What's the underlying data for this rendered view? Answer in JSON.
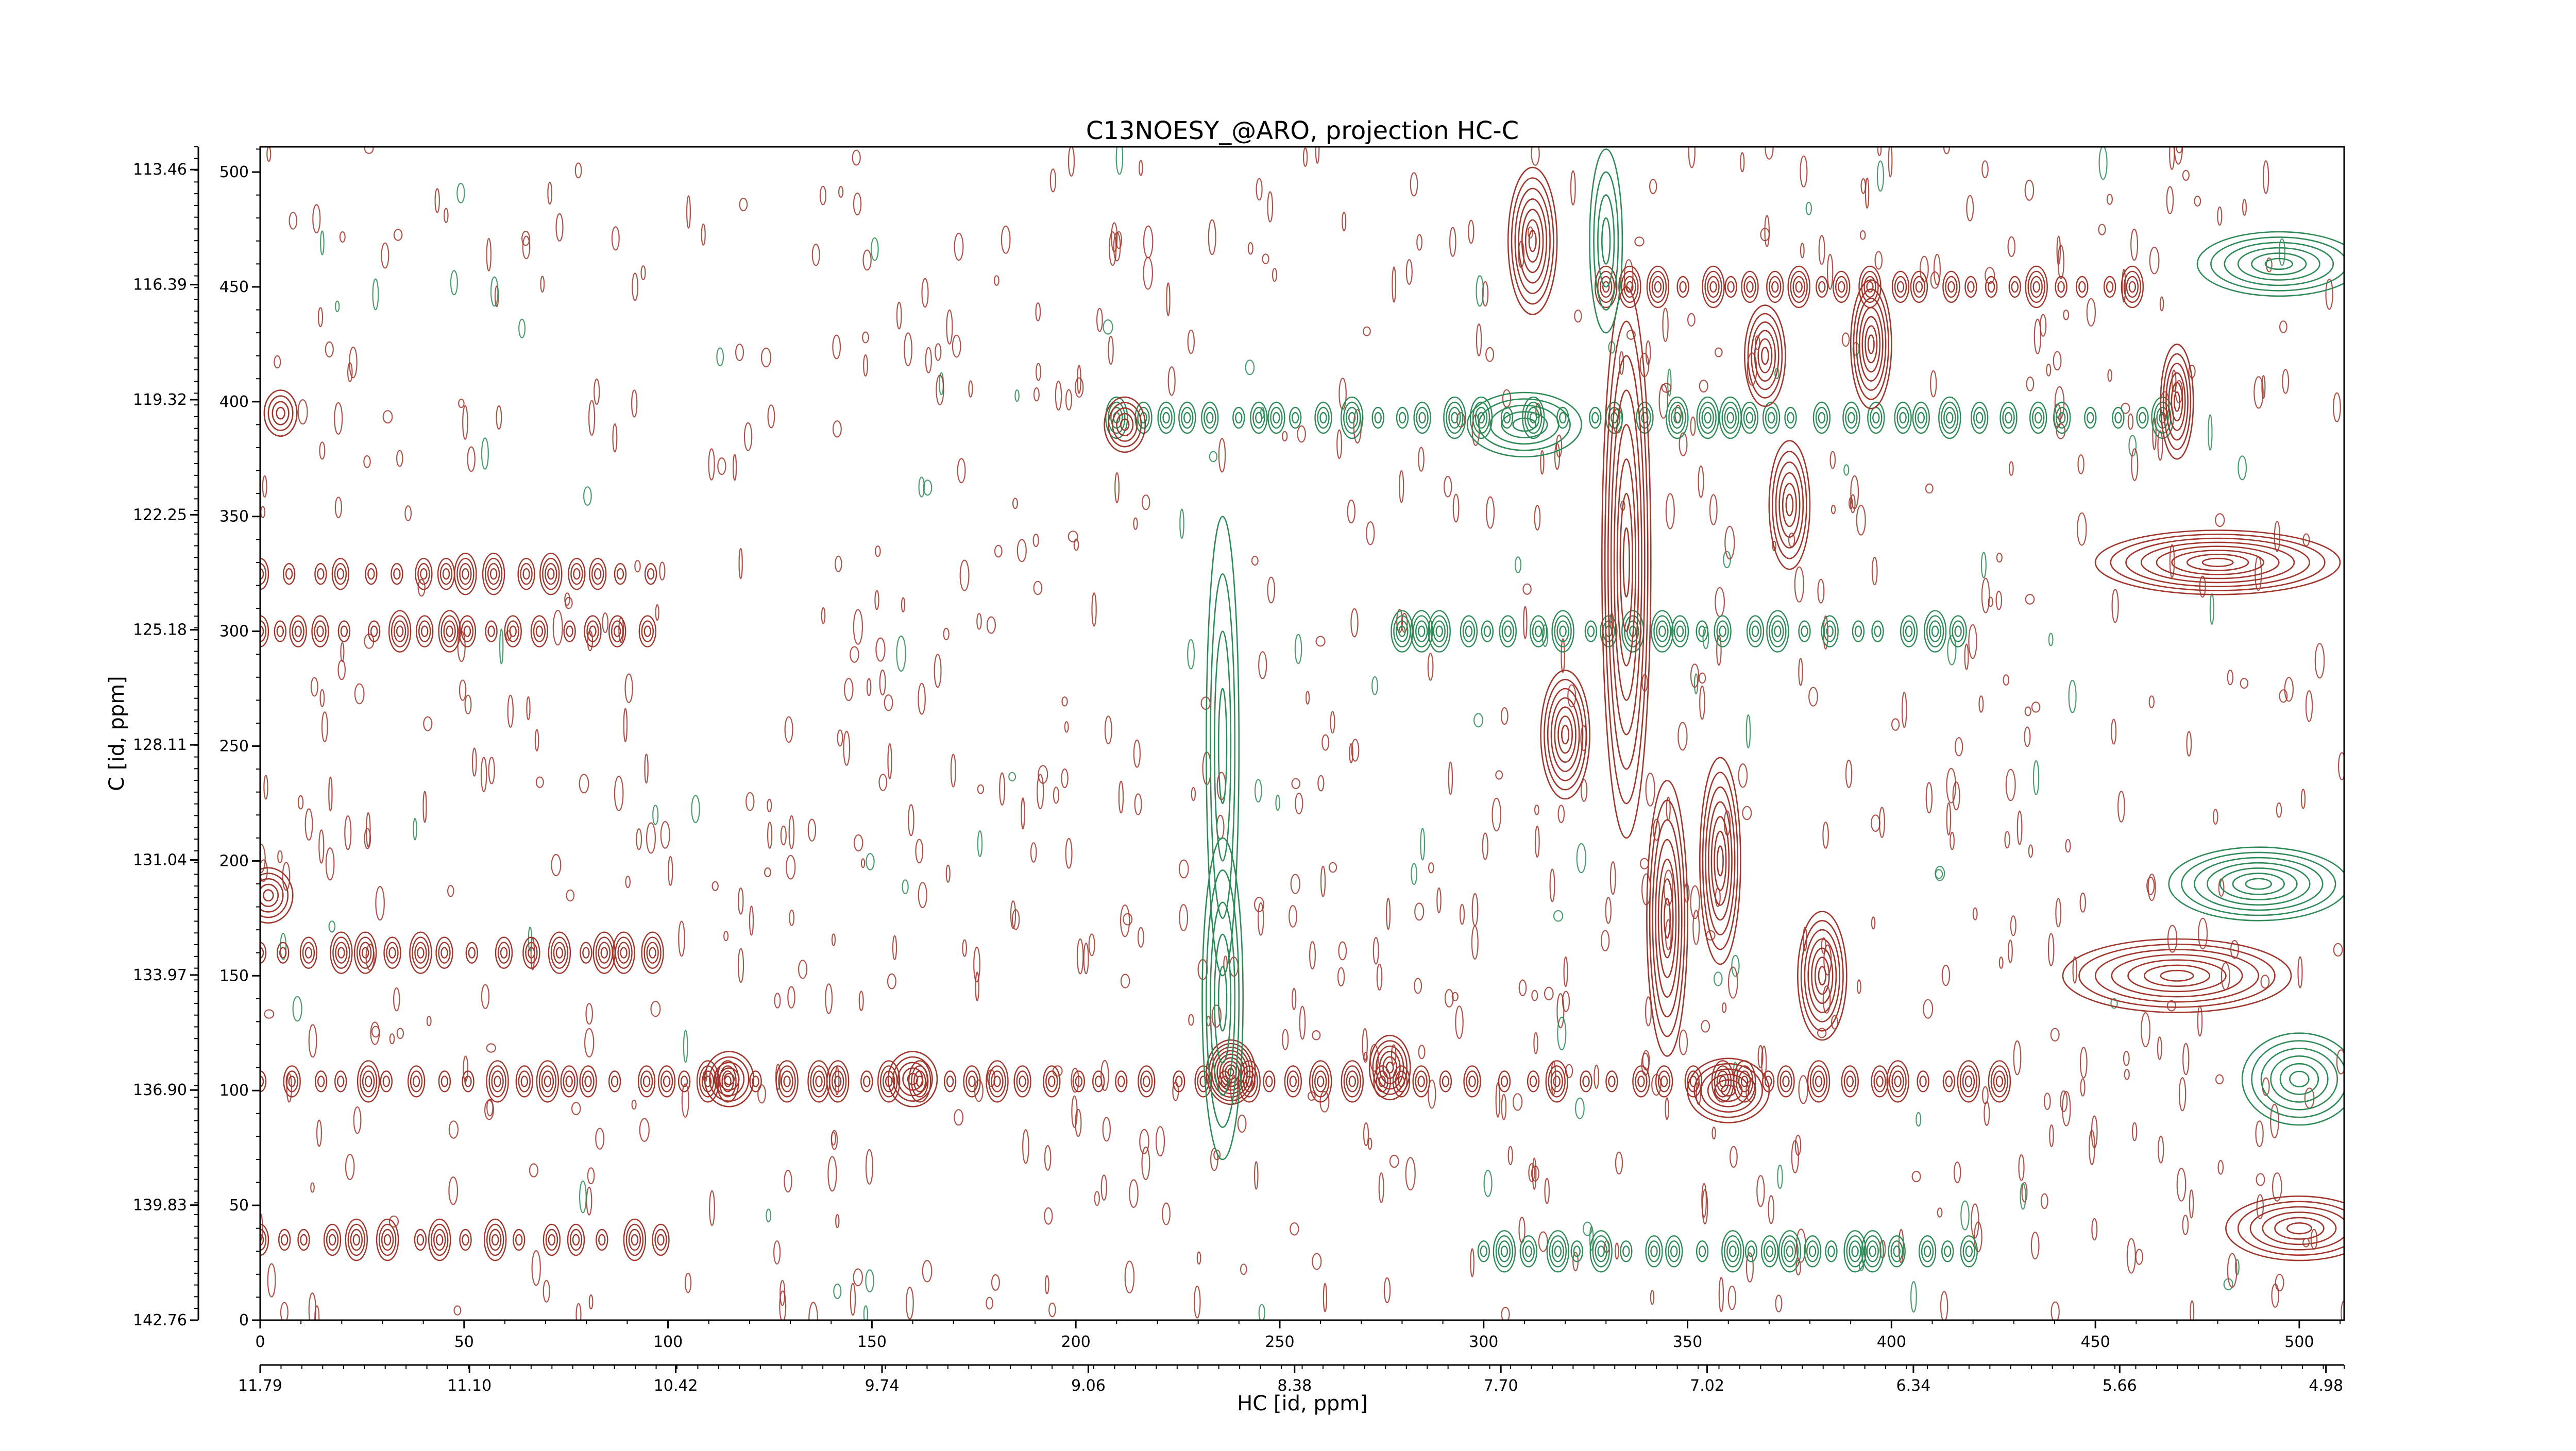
{
  "chart_data": {
    "type": "contour",
    "title": "C13NOESY_@ARO, projection HC-C",
    "xlabel": "HC [id, ppm]",
    "ylabel": "C [id, ppm]",
    "x_points": {
      "range": [
        0,
        511
      ],
      "ticks": [
        "0",
        "50",
        "100",
        "150",
        "200",
        "250",
        "300",
        "350",
        "400",
        "450",
        "500"
      ]
    },
    "x_ppm": {
      "range": [
        11.79,
        4.92
      ],
      "ticks": [
        "11.79",
        "11.10",
        "10.42",
        "9.74",
        "9.06",
        "8.38",
        "7.70",
        "7.02",
        "6.34",
        "5.66",
        "4.98"
      ]
    },
    "y_points": {
      "range": [
        0,
        511
      ],
      "ticks": [
        "0",
        "50",
        "100",
        "150",
        "200",
        "250",
        "300",
        "350",
        "400",
        "450",
        "500"
      ]
    },
    "y_ppm": {
      "range": [
        142.76,
        112.88
      ],
      "ticks": [
        "142.76",
        "139.83",
        "136.90",
        "133.97",
        "131.04",
        "128.11",
        "125.18",
        "122.25",
        "119.32",
        "116.39",
        "113.46"
      ]
    },
    "series": [
      {
        "color": "#a0362c",
        "sign": "positive"
      },
      {
        "color": "#2e8b57",
        "sign": "negative"
      }
    ],
    "peaks": [
      {
        "x": 238,
        "y": 108,
        "sign": "positive",
        "rx": 6,
        "ry": 14,
        "levels": 9
      },
      {
        "x": 236,
        "y": 140,
        "sign": "negative",
        "rx": 5,
        "ry": 70,
        "levels": 5
      },
      {
        "x": 236,
        "y": 250,
        "sign": "negative",
        "rx": 4,
        "ry": 100,
        "levels": 4
      },
      {
        "x": 335,
        "y": 330,
        "sign": "positive",
        "rx": 6,
        "ry": 120,
        "levels": 8
      },
      {
        "x": 330,
        "y": 470,
        "sign": "negative",
        "rx": 4,
        "ry": 40,
        "levels": 4
      },
      {
        "x": 312,
        "y": 470,
        "sign": "positive",
        "rx": 6,
        "ry": 32,
        "levels": 7
      },
      {
        "x": 345,
        "y": 175,
        "sign": "positive",
        "rx": 5,
        "ry": 60,
        "levels": 7
      },
      {
        "x": 358,
        "y": 200,
        "sign": "positive",
        "rx": 5,
        "ry": 45,
        "levels": 7
      },
      {
        "x": 320,
        "y": 255,
        "sign": "positive",
        "rx": 6,
        "ry": 28,
        "levels": 7
      },
      {
        "x": 383,
        "y": 150,
        "sign": "positive",
        "rx": 6,
        "ry": 28,
        "levels": 7
      },
      {
        "x": 395,
        "y": 425,
        "sign": "positive",
        "rx": 5,
        "ry": 28,
        "levels": 7
      },
      {
        "x": 369,
        "y": 420,
        "sign": "positive",
        "rx": 5,
        "ry": 22,
        "levels": 6
      },
      {
        "x": 375,
        "y": 355,
        "sign": "positive",
        "rx": 5,
        "ry": 28,
        "levels": 6
      },
      {
        "x": 310,
        "y": 390,
        "sign": "negative",
        "rx": 14,
        "ry": 14,
        "levels": 5
      },
      {
        "x": 277,
        "y": 110,
        "sign": "positive",
        "rx": 5,
        "ry": 14,
        "levels": 6
      },
      {
        "x": 212,
        "y": 390,
        "sign": "positive",
        "rx": 5,
        "ry": 12,
        "levels": 5
      },
      {
        "x": 360,
        "y": 100,
        "sign": "positive",
        "rx": 10,
        "ry": 14,
        "levels": 6
      },
      {
        "x": 115,
        "y": 105,
        "sign": "positive",
        "rx": 6,
        "ry": 12,
        "levels": 5
      },
      {
        "x": 160,
        "y": 105,
        "sign": "positive",
        "rx": 6,
        "ry": 12,
        "levels": 5
      },
      {
        "x": 470,
        "y": 400,
        "sign": "positive",
        "rx": 4,
        "ry": 25,
        "levels": 6
      },
      {
        "x": 480,
        "y": 330,
        "sign": "positive",
        "rx": 30,
        "ry": 14,
        "levels": 8
      },
      {
        "x": 495,
        "y": 460,
        "sign": "negative",
        "rx": 20,
        "ry": 14,
        "levels": 6
      },
      {
        "x": 490,
        "y": 190,
        "sign": "negative",
        "rx": 22,
        "ry": 16,
        "levels": 7
      },
      {
        "x": 470,
        "y": 150,
        "sign": "positive",
        "rx": 28,
        "ry": 16,
        "levels": 7
      },
      {
        "x": 500,
        "y": 40,
        "sign": "positive",
        "rx": 18,
        "ry": 14,
        "levels": 6
      },
      {
        "x": 2,
        "y": 185,
        "sign": "positive",
        "rx": 6,
        "ry": 12,
        "levels": 5
      },
      {
        "x": 5,
        "y": 395,
        "sign": "positive",
        "rx": 4,
        "ry": 10,
        "levels": 4
      },
      {
        "x": 500,
        "y": 105,
        "sign": "negative",
        "rx": 14,
        "ry": 20,
        "levels": 6
      }
    ],
    "bands": [
      {
        "y": 104,
        "x0": 0,
        "x1": 430,
        "sign": "positive"
      },
      {
        "y": 300,
        "x0": 280,
        "x1": 420,
        "sign": "negative"
      },
      {
        "y": 393,
        "x0": 210,
        "x1": 470,
        "sign": "negative"
      },
      {
        "y": 30,
        "x0": 300,
        "x1": 420,
        "sign": "negative"
      },
      {
        "y": 325,
        "x0": 0,
        "x1": 100,
        "sign": "positive"
      },
      {
        "y": 300,
        "x0": 0,
        "x1": 100,
        "sign": "positive"
      },
      {
        "y": 160,
        "x0": 0,
        "x1": 100,
        "sign": "positive"
      },
      {
        "y": 35,
        "x0": 0,
        "x1": 100,
        "sign": "positive"
      },
      {
        "y": 450,
        "x0": 330,
        "x1": 460,
        "sign": "positive"
      }
    ],
    "grid": false,
    "legend": "none"
  }
}
